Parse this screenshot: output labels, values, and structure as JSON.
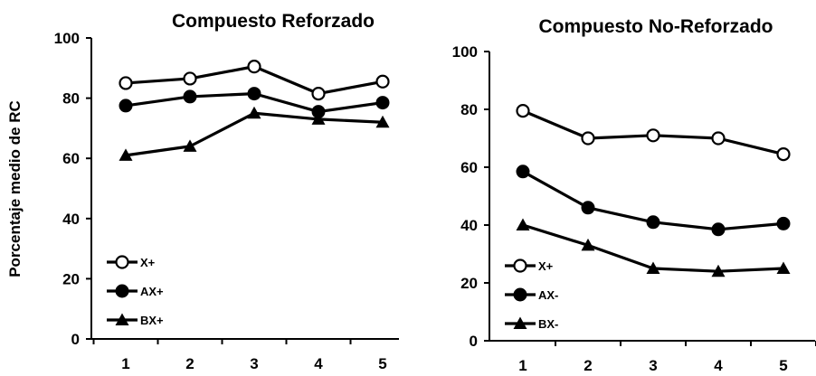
{
  "chart_data": [
    {
      "type": "line",
      "title": "Compuesto Reforzado",
      "ylabel": "Porcentaje medio de RC",
      "xlabel": "",
      "x": [
        1,
        2,
        3,
        4,
        5
      ],
      "x_tick_labels": [
        "1",
        "2",
        "3",
        "4",
        "5"
      ],
      "ylim": [
        0,
        100
      ],
      "y_ticks": [
        0,
        20,
        40,
        60,
        80,
        100
      ],
      "y_tick_labels": [
        "0",
        "20",
        "40",
        "60",
        "80",
        "100"
      ],
      "legend_position": "bottom-left",
      "grid": false,
      "series": [
        {
          "name": "X+",
          "marker": "open-circle",
          "values": [
            85,
            86.5,
            90.5,
            81.5,
            85.5
          ]
        },
        {
          "name": "AX+",
          "marker": "filled-circle",
          "values": [
            77.5,
            80.5,
            81.5,
            75.5,
            78.5
          ]
        },
        {
          "name": "BX+",
          "marker": "filled-triangle",
          "values": [
            61,
            64,
            75,
            73,
            72
          ]
        }
      ]
    },
    {
      "type": "line",
      "title": "Compuesto No-Reforzado",
      "ylabel": "",
      "xlabel": "",
      "x": [
        1,
        2,
        3,
        4,
        5
      ],
      "x_tick_labels": [
        "1",
        "2",
        "3",
        "4",
        "5"
      ],
      "ylim": [
        0,
        100
      ],
      "y_ticks": [
        0,
        20,
        40,
        60,
        80,
        100
      ],
      "y_tick_labels": [
        "0",
        "20",
        "40",
        "60",
        "80",
        "100"
      ],
      "legend_position": "bottom-left",
      "grid": false,
      "series": [
        {
          "name": "X+",
          "marker": "open-circle",
          "values": [
            79.5,
            70,
            71,
            70,
            64.5
          ]
        },
        {
          "name": "AX-",
          "marker": "filled-circle",
          "values": [
            58.5,
            46,
            41,
            38.5,
            40.5
          ]
        },
        {
          "name": "BX-",
          "marker": "filled-triangle",
          "values": [
            40,
            33,
            25,
            24,
            25
          ]
        }
      ]
    }
  ]
}
